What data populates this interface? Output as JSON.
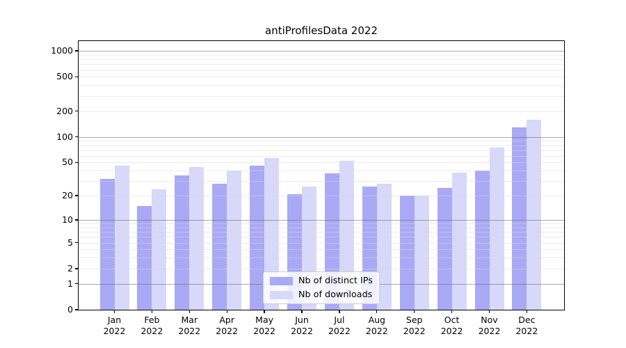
{
  "title": "antiProfilesData 2022",
  "chart_data": {
    "type": "bar",
    "title": "antiProfilesData 2022",
    "categories": [
      "Jan",
      "Feb",
      "Mar",
      "Apr",
      "May",
      "Jun",
      "Jul",
      "Aug",
      "Sep",
      "Oct",
      "Nov",
      "Dec"
    ],
    "year": "2022",
    "series": [
      {
        "name": "Nb of distinct IPs",
        "color": "#a9a9f6",
        "values": [
          32,
          15,
          35,
          28,
          46,
          21,
          37,
          26,
          20,
          25,
          40,
          128
        ]
      },
      {
        "name": "Nb of downloads",
        "color": "#d8d8fa",
        "values": [
          46,
          24,
          44,
          40,
          56,
          26,
          52,
          28,
          20,
          38,
          75,
          160
        ]
      }
    ],
    "yscale": "log10(value+1)",
    "yticks": [
      1000,
      500,
      200,
      100,
      50,
      20,
      10,
      5,
      2,
      1,
      0
    ],
    "ylim": [
      0,
      1300
    ],
    "xlabel": "",
    "ylabel": "",
    "grid": true,
    "grid_above_bars": true,
    "legend_position": "lower center"
  },
  "colors": {
    "background": "#ffffff",
    "bar_distinct_ips": "#a9a9f6",
    "bar_downloads": "#d8d8fa",
    "grid_major": "#6e6e6e",
    "grid_minor": "#d9d9d9",
    "axis": "#000000",
    "legend_border": "#cccccc"
  }
}
